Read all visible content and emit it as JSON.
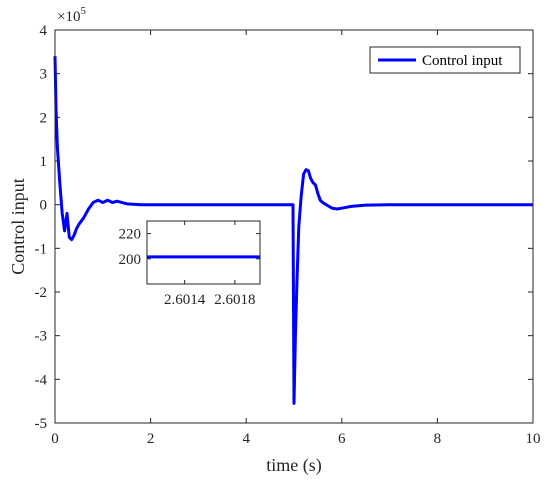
{
  "colors": {
    "series": "#0000ff",
    "axis": "#262626",
    "background": "#ffffff"
  },
  "chart_data": {
    "type": "line",
    "title": "",
    "xlabel": "time (s)",
    "ylabel": "Control input",
    "xlim": [
      0,
      10
    ],
    "ylim": [
      -5,
      4
    ],
    "y_exponent_label": "×10",
    "y_exponent_power": "5",
    "x_ticks": [
      0,
      2,
      4,
      6,
      8,
      10
    ],
    "x_tick_labels": [
      "0",
      "2",
      "4",
      "6",
      "8",
      "10"
    ],
    "y_ticks": [
      -5,
      -4,
      -3,
      -2,
      -1,
      0,
      1,
      2,
      3,
      4
    ],
    "y_tick_labels": [
      "-5",
      "-4",
      "-3",
      "-2",
      "-1",
      "0",
      "1",
      "2",
      "3",
      "4"
    ],
    "grid": false,
    "legend": {
      "position": "top-right",
      "entries": [
        "Control input"
      ]
    },
    "series": [
      {
        "name": "Control input",
        "x": [
          0,
          0.02,
          0.05,
          0.1,
          0.15,
          0.2,
          0.25,
          0.3,
          0.35,
          0.4,
          0.45,
          0.5,
          0.6,
          0.7,
          0.8,
          0.9,
          1.0,
          1.1,
          1.2,
          1.3,
          1.5,
          1.8,
          2.2,
          3.0,
          4.0,
          4.98,
          5.0,
          5.03,
          5.06,
          5.1,
          5.15,
          5.2,
          5.25,
          5.3,
          5.35,
          5.4,
          5.45,
          5.5,
          5.55,
          5.6,
          5.7,
          5.8,
          5.9,
          6.0,
          6.2,
          6.5,
          7.0,
          8.0,
          9.0,
          10.0
        ],
        "y": [
          3.4,
          2.2,
          1.3,
          0.5,
          -0.2,
          -0.6,
          -0.2,
          -0.75,
          -0.8,
          -0.7,
          -0.55,
          -0.45,
          -0.3,
          -0.1,
          0.05,
          0.1,
          0.05,
          0.1,
          0.05,
          0.08,
          0.02,
          0.0,
          0.0,
          0.0,
          0.0,
          0.0,
          -4.55,
          -3.0,
          -1.8,
          -0.5,
          0.2,
          0.7,
          0.8,
          0.78,
          0.6,
          0.5,
          0.45,
          0.25,
          0.1,
          0.05,
          -0.02,
          -0.08,
          -0.1,
          -0.08,
          -0.04,
          -0.01,
          0.0,
          0.0,
          0.0,
          0.0
        ]
      }
    ],
    "inset": {
      "xlim": [
        2.6011,
        2.602
      ],
      "ylim": [
        180,
        230
      ],
      "x_ticks": [
        2.6014,
        2.6018
      ],
      "x_tick_labels": [
        "2.6014",
        "2.6018"
      ],
      "y_ticks": [
        200,
        220
      ],
      "y_tick_labels": [
        "200",
        "220"
      ],
      "x": [
        2.6011,
        2.602
      ],
      "y": [
        201.5,
        201.5
      ]
    }
  }
}
